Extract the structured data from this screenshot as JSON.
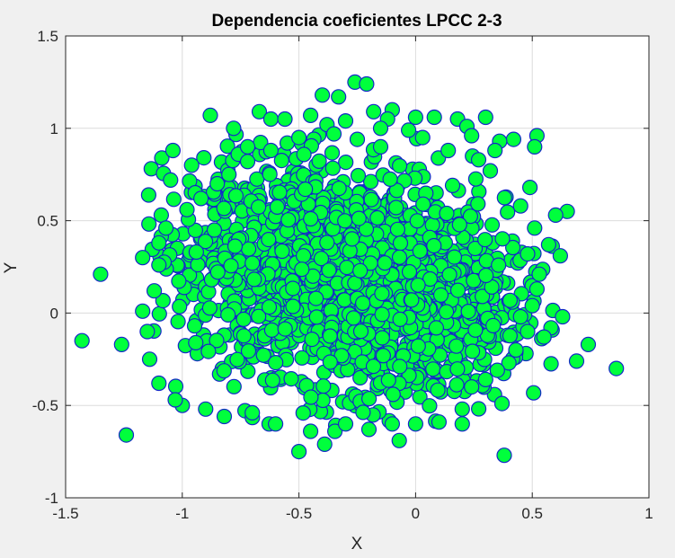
{
  "figure": {
    "background": "#f0f0f0",
    "axes_background": "#ffffff"
  },
  "chart_data": {
    "type": "scatter",
    "title": "Dependencia coeficientes LPCC 2-3",
    "xlabel": "X",
    "ylabel": "Y",
    "xlim": [
      -1.5,
      1
    ],
    "ylim": [
      -1,
      1.5
    ],
    "xticks": [
      -1.5,
      -1,
      -0.5,
      0,
      0.5,
      1
    ],
    "xtick_labels": [
      "-1.5",
      "-1",
      "-0.5",
      "0",
      "0.5",
      "1"
    ],
    "yticks": [
      -1,
      -0.5,
      0,
      0.5,
      1,
      1.5
    ],
    "ytick_labels": [
      "-1",
      "-0.5",
      "0",
      "0.5",
      "1",
      "1.5"
    ],
    "grid": true,
    "marker": {
      "shape": "circle",
      "face_color": "#00ff3c",
      "edge_color": "#1428c8"
    },
    "points": [
      [
        -1.43,
        -0.15
      ],
      [
        -1.35,
        0.21
      ],
      [
        -1.26,
        -0.17
      ],
      [
        -1.24,
        -0.66
      ],
      [
        -1.17,
        0.3
      ],
      [
        -0.88,
        1.07
      ],
      [
        -0.4,
        1.18
      ],
      [
        -0.33,
        1.17
      ],
      [
        -0.26,
        1.25
      ],
      [
        -0.21,
        1.24
      ],
      [
        -0.18,
        1.09
      ],
      [
        -0.5,
        -0.75
      ],
      [
        -0.39,
        -0.71
      ],
      [
        -0.07,
        -0.69
      ],
      [
        0.38,
        -0.77
      ],
      [
        0.37,
        -0.49
      ],
      [
        0.86,
        -0.3
      ],
      [
        0.74,
        -0.17
      ],
      [
        0.69,
        -0.26
      ],
      [
        0.65,
        0.55
      ],
      [
        0.6,
        0.53
      ],
      [
        0.57,
        0.37
      ],
      [
        0.62,
        0.31
      ],
      [
        0.52,
        0.96
      ],
      [
        0.51,
        0.9
      ],
      [
        0.3,
        1.06
      ],
      [
        0.18,
        1.05
      ],
      [
        0.22,
        1.01
      ],
      [
        0.42,
        0.94
      ],
      [
        0.36,
        0.93
      ],
      [
        0.34,
        0.88
      ],
      [
        0.49,
        0.68
      ],
      [
        0.63,
        -0.02
      ],
      [
        0.58,
        -0.08
      ],
      [
        0.55,
        -0.13
      ],
      [
        -1.04,
        0.88
      ],
      [
        -1.05,
        0.72
      ],
      [
        -0.96,
        0.8
      ],
      [
        -1.09,
        0.53
      ],
      [
        -0.78,
        1.0
      ],
      [
        -0.67,
        1.09
      ],
      [
        -0.62,
        1.05
      ],
      [
        -0.56,
        1.05
      ],
      [
        -0.76,
        0.86
      ],
      [
        -0.72,
        0.9
      ],
      [
        0.08,
        1.06
      ],
      [
        0.0,
        1.06
      ],
      [
        -0.03,
        0.99
      ],
      [
        0.03,
        0.95
      ],
      [
        -0.1,
        1.1
      ],
      [
        -0.12,
        1.05
      ],
      [
        -0.15,
        1.0
      ],
      [
        -0.3,
        1.04
      ],
      [
        -0.38,
        1.02
      ],
      [
        -0.45,
        1.07
      ],
      [
        0.24,
        0.96
      ],
      [
        0.14,
        0.88
      ],
      [
        0.27,
        0.83
      ],
      [
        0.32,
        0.77
      ],
      [
        0.45,
        0.58
      ],
      [
        0.51,
        0.46
      ],
      [
        0.48,
        0.32
      ],
      [
        0.53,
        0.21
      ],
      [
        0.52,
        0.13
      ],
      [
        0.5,
        0.04
      ],
      [
        0.45,
        -0.02
      ],
      [
        0.48,
        -0.1
      ],
      [
        0.43,
        -0.2
      ],
      [
        0.4,
        -0.27
      ],
      [
        0.35,
        -0.31
      ],
      [
        0.3,
        -0.36
      ],
      [
        0.24,
        -0.4
      ],
      [
        0.2,
        -0.52
      ],
      [
        0.2,
        -0.6
      ],
      [
        0.1,
        -0.59
      ],
      [
        0.0,
        -0.6
      ],
      [
        -0.1,
        -0.6
      ],
      [
        -0.2,
        -0.63
      ],
      [
        -0.3,
        -0.6
      ],
      [
        -0.45,
        -0.64
      ],
      [
        -0.6,
        -0.6
      ],
      [
        -0.7,
        -0.54
      ],
      [
        -0.82,
        -0.56
      ],
      [
        -0.9,
        -0.52
      ],
      [
        -1.0,
        -0.5
      ],
      [
        -1.03,
        -0.47
      ],
      [
        -1.1,
        -0.38
      ],
      [
        -1.14,
        -0.25
      ],
      [
        -1.15,
        -0.1
      ],
      [
        -1.17,
        0.01
      ],
      [
        -1.12,
        0.12
      ],
      [
        -1.1,
        0.26
      ],
      [
        -1.1,
        0.38
      ],
      [
        -1.07,
        0.46
      ],
      [
        -0.98,
        0.56
      ],
      [
        -0.92,
        0.62
      ],
      [
        -0.85,
        0.7
      ],
      [
        -0.8,
        0.75
      ],
      [
        -0.72,
        0.82
      ],
      [
        -0.62,
        0.88
      ],
      [
        -0.55,
        0.92
      ],
      [
        -0.5,
        0.95
      ],
      [
        -0.35,
        0.97
      ],
      [
        -0.25,
        0.94
      ],
      [
        -0.15,
        0.9
      ]
    ]
  }
}
